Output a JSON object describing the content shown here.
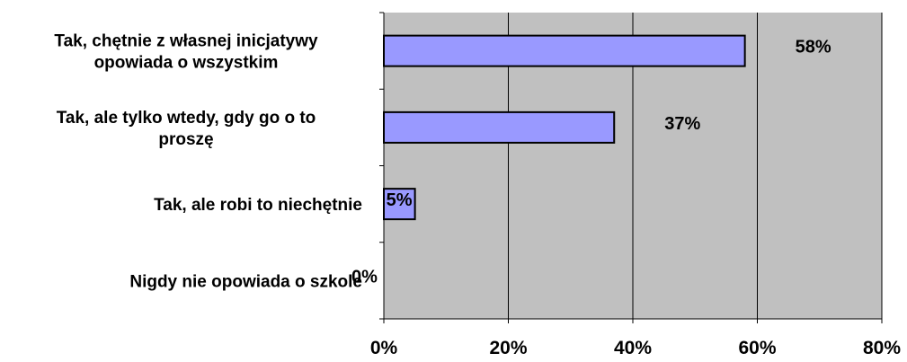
{
  "chart_data": {
    "type": "bar",
    "orientation": "horizontal",
    "categories": [
      [
        "Tak, chętnie z własnej inicjatywy",
        "opowiada o wszystkim"
      ],
      [
        "Tak, ale tylko wtedy, gdy go o to",
        "proszę"
      ],
      [
        "Tak, ale robi to niechętnie"
      ],
      [
        "Nigdy nie opowiada o szkole"
      ]
    ],
    "values": [
      58,
      37,
      5,
      0
    ],
    "data_labels": [
      "58%",
      "37%",
      "5%",
      "0%"
    ],
    "xlim": [
      0,
      80
    ],
    "x_ticks": [
      "0%",
      "20%",
      "40%",
      "60%",
      "80%"
    ],
    "grid": "vertical",
    "legend": "none",
    "colors": {
      "plot_background": "#c0c0c0",
      "bar_fill": "#9999ff",
      "bar_stroke": "#000000",
      "gridline": "#000000"
    }
  }
}
